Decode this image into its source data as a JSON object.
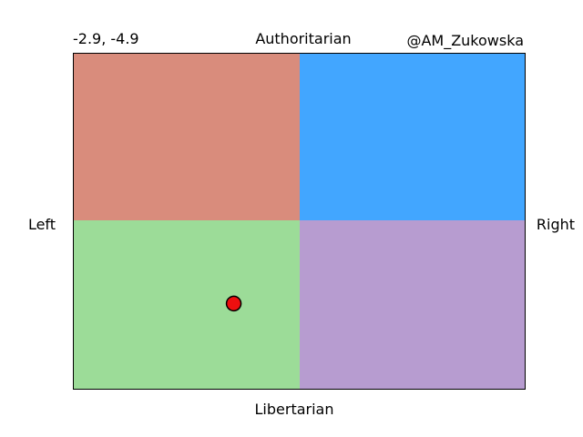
{
  "chart_data": {
    "type": "scatter",
    "title": "",
    "coords_label": "-2.9, -4.9",
    "credit": "@AM_Zukowska",
    "labels": {
      "top": "Authoritarian",
      "bottom": "Libertarian",
      "left": "Left",
      "right": "Right"
    },
    "xlim": [
      -10,
      10
    ],
    "ylim": [
      -10,
      10
    ],
    "quadrants": [
      {
        "name": "authoritarian-left",
        "color": "#d98c7c"
      },
      {
        "name": "authoritarian-right",
        "color": "#42a6ff"
      },
      {
        "name": "libertarian-left",
        "color": "#9cdc98"
      },
      {
        "name": "libertarian-right",
        "color": "#b79cd0"
      }
    ],
    "points": [
      {
        "x": -2.9,
        "y": -4.9,
        "color": "#ee0f0f"
      }
    ],
    "grid": false,
    "legend": "none"
  }
}
